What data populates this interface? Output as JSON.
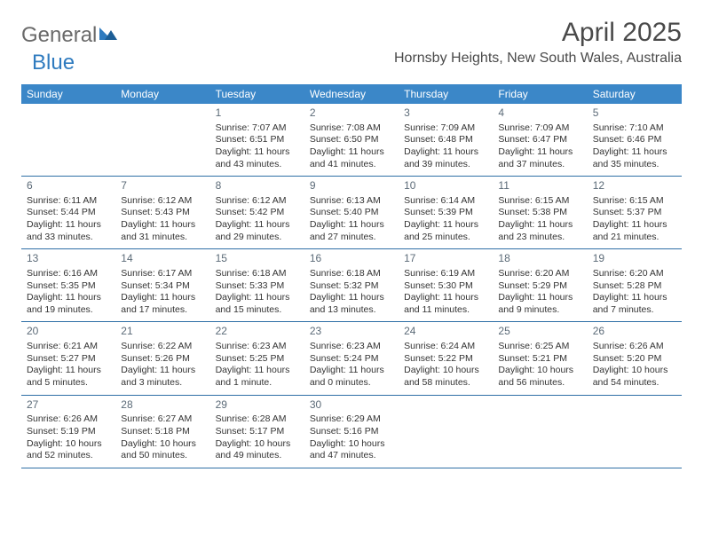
{
  "brand": {
    "word1": "General",
    "word2": "Blue"
  },
  "title": "April 2025",
  "location": "Hornsby Heights, New South Wales, Australia",
  "header_bg": "#3b87c8",
  "border_color": "#2f6fa6",
  "weekdays": [
    "Sunday",
    "Monday",
    "Tuesday",
    "Wednesday",
    "Thursday",
    "Friday",
    "Saturday"
  ],
  "leading_blanks": 2,
  "days": [
    {
      "n": "1",
      "sunrise": "Sunrise: 7:07 AM",
      "sunset": "Sunset: 6:51 PM",
      "day1": "Daylight: 11 hours",
      "day2": "and 43 minutes."
    },
    {
      "n": "2",
      "sunrise": "Sunrise: 7:08 AM",
      "sunset": "Sunset: 6:50 PM",
      "day1": "Daylight: 11 hours",
      "day2": "and 41 minutes."
    },
    {
      "n": "3",
      "sunrise": "Sunrise: 7:09 AM",
      "sunset": "Sunset: 6:48 PM",
      "day1": "Daylight: 11 hours",
      "day2": "and 39 minutes."
    },
    {
      "n": "4",
      "sunrise": "Sunrise: 7:09 AM",
      "sunset": "Sunset: 6:47 PM",
      "day1": "Daylight: 11 hours",
      "day2": "and 37 minutes."
    },
    {
      "n": "5",
      "sunrise": "Sunrise: 7:10 AM",
      "sunset": "Sunset: 6:46 PM",
      "day1": "Daylight: 11 hours",
      "day2": "and 35 minutes."
    },
    {
      "n": "6",
      "sunrise": "Sunrise: 6:11 AM",
      "sunset": "Sunset: 5:44 PM",
      "day1": "Daylight: 11 hours",
      "day2": "and 33 minutes."
    },
    {
      "n": "7",
      "sunrise": "Sunrise: 6:12 AM",
      "sunset": "Sunset: 5:43 PM",
      "day1": "Daylight: 11 hours",
      "day2": "and 31 minutes."
    },
    {
      "n": "8",
      "sunrise": "Sunrise: 6:12 AM",
      "sunset": "Sunset: 5:42 PM",
      "day1": "Daylight: 11 hours",
      "day2": "and 29 minutes."
    },
    {
      "n": "9",
      "sunrise": "Sunrise: 6:13 AM",
      "sunset": "Sunset: 5:40 PM",
      "day1": "Daylight: 11 hours",
      "day2": "and 27 minutes."
    },
    {
      "n": "10",
      "sunrise": "Sunrise: 6:14 AM",
      "sunset": "Sunset: 5:39 PM",
      "day1": "Daylight: 11 hours",
      "day2": "and 25 minutes."
    },
    {
      "n": "11",
      "sunrise": "Sunrise: 6:15 AM",
      "sunset": "Sunset: 5:38 PM",
      "day1": "Daylight: 11 hours",
      "day2": "and 23 minutes."
    },
    {
      "n": "12",
      "sunrise": "Sunrise: 6:15 AM",
      "sunset": "Sunset: 5:37 PM",
      "day1": "Daylight: 11 hours",
      "day2": "and 21 minutes."
    },
    {
      "n": "13",
      "sunrise": "Sunrise: 6:16 AM",
      "sunset": "Sunset: 5:35 PM",
      "day1": "Daylight: 11 hours",
      "day2": "and 19 minutes."
    },
    {
      "n": "14",
      "sunrise": "Sunrise: 6:17 AM",
      "sunset": "Sunset: 5:34 PM",
      "day1": "Daylight: 11 hours",
      "day2": "and 17 minutes."
    },
    {
      "n": "15",
      "sunrise": "Sunrise: 6:18 AM",
      "sunset": "Sunset: 5:33 PM",
      "day1": "Daylight: 11 hours",
      "day2": "and 15 minutes."
    },
    {
      "n": "16",
      "sunrise": "Sunrise: 6:18 AM",
      "sunset": "Sunset: 5:32 PM",
      "day1": "Daylight: 11 hours",
      "day2": "and 13 minutes."
    },
    {
      "n": "17",
      "sunrise": "Sunrise: 6:19 AM",
      "sunset": "Sunset: 5:30 PM",
      "day1": "Daylight: 11 hours",
      "day2": "and 11 minutes."
    },
    {
      "n": "18",
      "sunrise": "Sunrise: 6:20 AM",
      "sunset": "Sunset: 5:29 PM",
      "day1": "Daylight: 11 hours",
      "day2": "and 9 minutes."
    },
    {
      "n": "19",
      "sunrise": "Sunrise: 6:20 AM",
      "sunset": "Sunset: 5:28 PM",
      "day1": "Daylight: 11 hours",
      "day2": "and 7 minutes."
    },
    {
      "n": "20",
      "sunrise": "Sunrise: 6:21 AM",
      "sunset": "Sunset: 5:27 PM",
      "day1": "Daylight: 11 hours",
      "day2": "and 5 minutes."
    },
    {
      "n": "21",
      "sunrise": "Sunrise: 6:22 AM",
      "sunset": "Sunset: 5:26 PM",
      "day1": "Daylight: 11 hours",
      "day2": "and 3 minutes."
    },
    {
      "n": "22",
      "sunrise": "Sunrise: 6:23 AM",
      "sunset": "Sunset: 5:25 PM",
      "day1": "Daylight: 11 hours",
      "day2": "and 1 minute."
    },
    {
      "n": "23",
      "sunrise": "Sunrise: 6:23 AM",
      "sunset": "Sunset: 5:24 PM",
      "day1": "Daylight: 11 hours",
      "day2": "and 0 minutes."
    },
    {
      "n": "24",
      "sunrise": "Sunrise: 6:24 AM",
      "sunset": "Sunset: 5:22 PM",
      "day1": "Daylight: 10 hours",
      "day2": "and 58 minutes."
    },
    {
      "n": "25",
      "sunrise": "Sunrise: 6:25 AM",
      "sunset": "Sunset: 5:21 PM",
      "day1": "Daylight: 10 hours",
      "day2": "and 56 minutes."
    },
    {
      "n": "26",
      "sunrise": "Sunrise: 6:26 AM",
      "sunset": "Sunset: 5:20 PM",
      "day1": "Daylight: 10 hours",
      "day2": "and 54 minutes."
    },
    {
      "n": "27",
      "sunrise": "Sunrise: 6:26 AM",
      "sunset": "Sunset: 5:19 PM",
      "day1": "Daylight: 10 hours",
      "day2": "and 52 minutes."
    },
    {
      "n": "28",
      "sunrise": "Sunrise: 6:27 AM",
      "sunset": "Sunset: 5:18 PM",
      "day1": "Daylight: 10 hours",
      "day2": "and 50 minutes."
    },
    {
      "n": "29",
      "sunrise": "Sunrise: 6:28 AM",
      "sunset": "Sunset: 5:17 PM",
      "day1": "Daylight: 10 hours",
      "day2": "and 49 minutes."
    },
    {
      "n": "30",
      "sunrise": "Sunrise: 6:29 AM",
      "sunset": "Sunset: 5:16 PM",
      "day1": "Daylight: 10 hours",
      "day2": "and 47 minutes."
    }
  ]
}
